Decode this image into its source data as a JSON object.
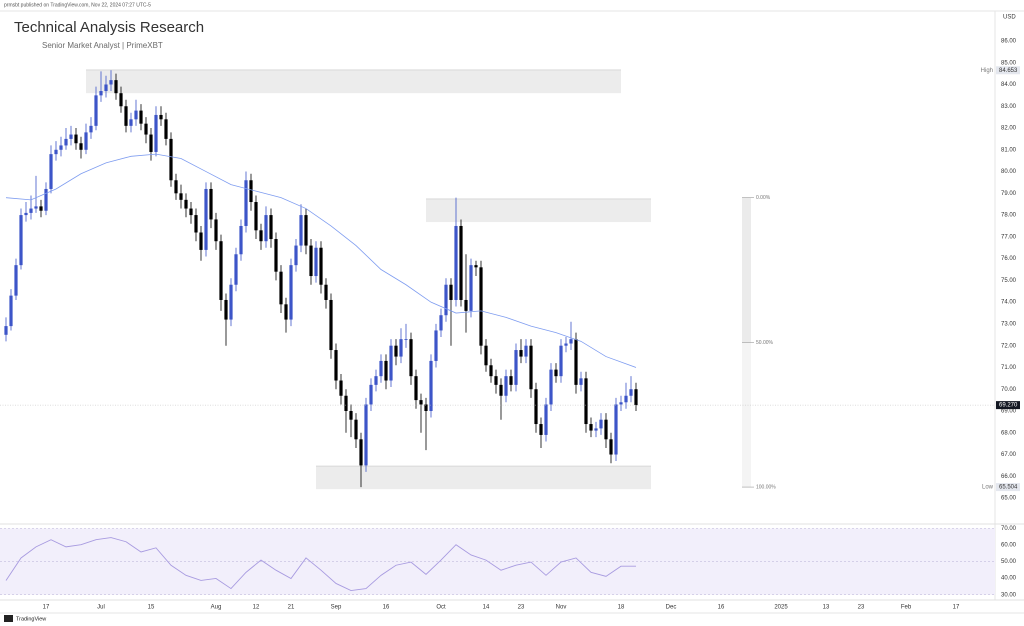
{
  "header": {
    "publisher": "prmsbt published on TradingView.com, Nov 22, 2024 07:27 UTC-5",
    "title": "Technical Analysis Research",
    "subtitle": "Senior Market Analyst | PrimeXBT"
  },
  "footer": {
    "brand": "TradingView"
  },
  "chart_data": [
    {
      "type": "candlestick",
      "y_unit": "USD",
      "up_color": "#3d55c8",
      "down_color": "#000000",
      "grid": false,
      "xlim": [
        -1.2,
        197.8
      ],
      "ylim": [
        63.9,
        87.33
      ],
      "xticks": [
        {
          "value": 8,
          "label": "17"
        },
        {
          "value": 19,
          "label": "Jul"
        },
        {
          "value": 29,
          "label": "15"
        },
        {
          "value": 42,
          "label": "Aug"
        },
        {
          "value": 50,
          "label": "12"
        },
        {
          "value": 57,
          "label": "21"
        },
        {
          "value": 66,
          "label": "Sep"
        },
        {
          "value": 76,
          "label": "16"
        },
        {
          "value": 87,
          "label": "Oct"
        },
        {
          "value": 96,
          "label": "14"
        },
        {
          "value": 103,
          "label": "23"
        },
        {
          "value": 111,
          "label": "Nov"
        },
        {
          "value": 123,
          "label": "18"
        },
        {
          "value": 133,
          "label": "Dec"
        },
        {
          "value": 143,
          "label": "16"
        },
        {
          "value": 155,
          "label": "2025"
        },
        {
          "value": 164,
          "label": "13"
        },
        {
          "value": 171,
          "label": "23"
        },
        {
          "value": 180,
          "label": "Feb"
        },
        {
          "value": 190,
          "label": "17"
        }
      ],
      "yticks": [
        {
          "value": 65,
          "label": "65.00"
        },
        {
          "value": 66,
          "label": "66.00"
        },
        {
          "value": 67,
          "label": "67.00"
        },
        {
          "value": 68,
          "label": "68.00"
        },
        {
          "value": 69,
          "label": "69.00"
        },
        {
          "value": 70,
          "label": "70.00"
        },
        {
          "value": 71,
          "label": "71.00"
        },
        {
          "value": 72,
          "label": "72.00"
        },
        {
          "value": 73,
          "label": "73.00"
        },
        {
          "value": 74,
          "label": "74.00"
        },
        {
          "value": 75,
          "label": "75.00"
        },
        {
          "value": 76,
          "label": "76.00"
        },
        {
          "value": 77,
          "label": "77.00"
        },
        {
          "value": 78,
          "label": "78.00"
        },
        {
          "value": 79,
          "label": "79.00"
        },
        {
          "value": 80,
          "label": "80.00"
        },
        {
          "value": 81,
          "label": "81.00"
        },
        {
          "value": 82,
          "label": "82.00"
        },
        {
          "value": 83,
          "label": "83.00"
        },
        {
          "value": 84,
          "label": "84.00"
        },
        {
          "value": 85,
          "label": "85.00"
        },
        {
          "value": 86,
          "label": "86.00"
        }
      ],
      "ohlc": [
        [
          72.5,
          73.3,
          72.2,
          72.9
        ],
        [
          72.9,
          74.6,
          72.7,
          74.3
        ],
        [
          74.3,
          76.0,
          74.1,
          75.7
        ],
        [
          75.7,
          78.3,
          75.5,
          78.0
        ],
        [
          78.0,
          78.6,
          77.7,
          78.1
        ],
        [
          78.1,
          78.9,
          77.8,
          78.3
        ],
        [
          78.3,
          79.8,
          78.1,
          78.4
        ],
        [
          78.4,
          78.7,
          77.9,
          78.2
        ],
        [
          78.2,
          79.5,
          78.0,
          79.2
        ],
        [
          79.2,
          81.2,
          79.0,
          80.8
        ],
        [
          80.8,
          81.4,
          80.5,
          81.0
        ],
        [
          81.0,
          81.6,
          80.7,
          81.2
        ],
        [
          81.2,
          82.0,
          81.0,
          81.5
        ],
        [
          81.5,
          82.1,
          81.2,
          81.7
        ],
        [
          81.7,
          82.0,
          81.0,
          81.3
        ],
        [
          81.3,
          81.6,
          80.6,
          81.0
        ],
        [
          81.0,
          82.2,
          80.8,
          81.8
        ],
        [
          81.8,
          82.5,
          81.5,
          82.1
        ],
        [
          82.1,
          83.9,
          81.9,
          83.5
        ],
        [
          83.5,
          84.6,
          83.2,
          83.7
        ],
        [
          83.7,
          84.4,
          83.4,
          84.0
        ],
        [
          84.0,
          84.653,
          83.7,
          84.2
        ],
        [
          84.2,
          84.5,
          83.3,
          83.6
        ],
        [
          83.6,
          83.9,
          82.7,
          83.0
        ],
        [
          83.0,
          83.3,
          81.8,
          82.1
        ],
        [
          82.1,
          82.7,
          81.8,
          82.4
        ],
        [
          82.4,
          83.3,
          82.1,
          82.8
        ],
        [
          82.8,
          83.1,
          81.9,
          82.2
        ],
        [
          82.2,
          82.5,
          81.3,
          81.7
        ],
        [
          81.7,
          82.0,
          80.5,
          80.9
        ],
        [
          80.9,
          83.0,
          80.7,
          82.6
        ],
        [
          82.6,
          83.0,
          82.1,
          82.4
        ],
        [
          82.4,
          82.7,
          81.2,
          81.5
        ],
        [
          81.5,
          81.8,
          79.3,
          79.6
        ],
        [
          79.6,
          79.9,
          78.7,
          79.0
        ],
        [
          79.0,
          79.4,
          78.3,
          78.7
        ],
        [
          78.7,
          79.0,
          77.9,
          78.3
        ],
        [
          78.3,
          78.6,
          77.6,
          78.0
        ],
        [
          78.0,
          78.3,
          76.8,
          77.2
        ],
        [
          77.2,
          77.5,
          75.9,
          76.4
        ],
        [
          76.4,
          79.5,
          76.1,
          79.2
        ],
        [
          79.2,
          79.5,
          77.4,
          77.8
        ],
        [
          77.8,
          78.1,
          76.4,
          76.8
        ],
        [
          76.8,
          77.1,
          73.6,
          74.1
        ],
        [
          74.1,
          74.4,
          72.0,
          73.2
        ],
        [
          73.2,
          75.1,
          72.9,
          74.8
        ],
        [
          74.8,
          76.5,
          74.5,
          76.2
        ],
        [
          76.2,
          77.8,
          75.9,
          77.5
        ],
        [
          77.5,
          80.0,
          77.2,
          79.6
        ],
        [
          79.6,
          79.9,
          78.2,
          78.6
        ],
        [
          78.6,
          78.9,
          76.9,
          77.3
        ],
        [
          77.3,
          77.6,
          76.4,
          76.8
        ],
        [
          76.8,
          78.4,
          76.5,
          78.0
        ],
        [
          78.0,
          78.3,
          76.5,
          76.9
        ],
        [
          76.9,
          77.2,
          75.0,
          75.4
        ],
        [
          75.4,
          75.7,
          73.5,
          73.9
        ],
        [
          73.9,
          74.2,
          72.6,
          73.2
        ],
        [
          73.2,
          76.0,
          72.9,
          75.7
        ],
        [
          75.7,
          76.9,
          75.4,
          76.6
        ],
        [
          76.6,
          78.5,
          76.3,
          78.0
        ],
        [
          78.0,
          78.3,
          76.2,
          76.6
        ],
        [
          76.6,
          76.9,
          74.8,
          75.2
        ],
        [
          75.2,
          76.8,
          74.9,
          76.5
        ],
        [
          76.5,
          76.8,
          74.4,
          74.8
        ],
        [
          74.8,
          75.1,
          73.7,
          74.1
        ],
        [
          74.1,
          74.4,
          71.4,
          71.8
        ],
        [
          71.8,
          72.1,
          70.0,
          70.4
        ],
        [
          70.4,
          70.7,
          69.3,
          69.7
        ],
        [
          69.7,
          70.0,
          68.0,
          69.0
        ],
        [
          69.0,
          69.3,
          67.8,
          68.6
        ],
        [
          68.6,
          68.9,
          67.3,
          67.7
        ],
        [
          67.7,
          68.0,
          65.504,
          66.5
        ],
        [
          66.5,
          69.6,
          66.2,
          69.3
        ],
        [
          69.3,
          70.5,
          69.0,
          70.2
        ],
        [
          70.2,
          70.9,
          69.9,
          70.6
        ],
        [
          70.6,
          71.6,
          70.3,
          71.3
        ],
        [
          71.3,
          71.6,
          70.0,
          70.4
        ],
        [
          70.4,
          72.3,
          70.1,
          72.0
        ],
        [
          72.0,
          72.3,
          71.1,
          71.5
        ],
        [
          71.5,
          72.8,
          71.2,
          72.3
        ],
        [
          72.3,
          73.0,
          71.9,
          72.3
        ],
        [
          72.3,
          72.6,
          70.2,
          70.6
        ],
        [
          70.6,
          70.9,
          69.1,
          69.5
        ],
        [
          69.5,
          69.8,
          68.0,
          69.3
        ],
        [
          69.3,
          69.6,
          67.2,
          69.0
        ],
        [
          69.0,
          71.6,
          68.7,
          71.3
        ],
        [
          71.3,
          73.0,
          71.0,
          72.7
        ],
        [
          72.7,
          73.7,
          72.4,
          73.4
        ],
        [
          73.4,
          75.1,
          73.1,
          74.8
        ],
        [
          74.8,
          75.1,
          72.0,
          74.1
        ],
        [
          74.1,
          78.8,
          73.8,
          77.5
        ],
        [
          77.5,
          77.8,
          73.8,
          74.1
        ],
        [
          74.1,
          76.2,
          72.6,
          73.6
        ],
        [
          73.6,
          76.0,
          73.3,
          75.7
        ],
        [
          75.7,
          75.9,
          75.2,
          75.6
        ],
        [
          75.6,
          75.9,
          71.6,
          72.0
        ],
        [
          72.0,
          72.3,
          70.8,
          71.1
        ],
        [
          71.1,
          71.4,
          70.3,
          70.6
        ],
        [
          70.6,
          70.9,
          69.8,
          70.2
        ],
        [
          70.2,
          70.5,
          68.6,
          69.7
        ],
        [
          69.7,
          70.9,
          69.4,
          70.6
        ],
        [
          70.6,
          70.9,
          69.9,
          70.2
        ],
        [
          70.2,
          72.1,
          69.9,
          71.8
        ],
        [
          71.8,
          72.3,
          71.2,
          71.5
        ],
        [
          71.5,
          72.3,
          71.2,
          72.0
        ],
        [
          72.0,
          72.3,
          69.6,
          70.0
        ],
        [
          70.0,
          70.3,
          68.0,
          68.4
        ],
        [
          68.4,
          68.7,
          67.3,
          67.9
        ],
        [
          67.9,
          69.6,
          67.6,
          69.3
        ],
        [
          69.3,
          71.2,
          69.0,
          70.9
        ],
        [
          70.9,
          71.2,
          70.3,
          70.6
        ],
        [
          70.6,
          72.3,
          70.3,
          72.0
        ],
        [
          72.0,
          72.4,
          71.7,
          72.1
        ],
        [
          72.1,
          73.1,
          71.8,
          72.3
        ],
        [
          72.3,
          72.6,
          69.8,
          70.2
        ],
        [
          70.2,
          70.8,
          69.9,
          70.5
        ],
        [
          70.5,
          70.8,
          68.0,
          68.4
        ],
        [
          68.4,
          68.7,
          67.8,
          68.1
        ],
        [
          68.1,
          68.5,
          67.8,
          68.2
        ],
        [
          68.2,
          68.9,
          67.9,
          68.6
        ],
        [
          68.6,
          68.9,
          67.3,
          67.7
        ],
        [
          67.7,
          68.0,
          66.6,
          67.0
        ],
        [
          67.0,
          69.6,
          66.7,
          69.3
        ],
        [
          69.3,
          69.7,
          69.0,
          69.4
        ],
        [
          69.4,
          70.3,
          69.1,
          69.7
        ],
        [
          69.7,
          70.6,
          69.4,
          70.0
        ],
        [
          70.0,
          70.3,
          69.0,
          69.27
        ]
      ],
      "ma": {
        "color": "#7e9cf0",
        "x": [
          0,
          5,
          10,
          15,
          20,
          25,
          30,
          35,
          40,
          45,
          50,
          55,
          60,
          65,
          70,
          75,
          80,
          85,
          90,
          95,
          100,
          105,
          110,
          115,
          120,
          126
        ],
        "values": [
          78.8,
          78.7,
          79.2,
          79.9,
          80.4,
          80.7,
          80.8,
          80.6,
          80.0,
          79.4,
          79.1,
          78.8,
          78.3,
          77.5,
          76.6,
          75.5,
          74.8,
          74.0,
          73.5,
          73.6,
          73.3,
          72.9,
          72.6,
          72.2,
          71.5,
          71.0
        ]
      },
      "zones": [
        {
          "start": 16,
          "end": 123,
          "low": 83.6,
          "high": 84.67
        },
        {
          "start": 84,
          "end": 129,
          "low": 77.68,
          "high": 78.74
        },
        {
          "start": 62,
          "end": 129,
          "low": 65.41,
          "high": 66.47
        }
      ],
      "fib": {
        "x": 148,
        "levels": [
          {
            "value": 78.8,
            "label": "0.00%"
          },
          {
            "value": 72.15,
            "label": "50.00%"
          },
          {
            "value": 65.504,
            "label": "100.00%"
          }
        ]
      },
      "high": {
        "label": "High",
        "value": 84.653
      },
      "low": {
        "label": "Low",
        "value": 65.504
      },
      "last": {
        "value": 69.27,
        "label": "69.270"
      }
    },
    {
      "type": "line",
      "color": "#a89be0",
      "band_color": "#f2effb",
      "xlim": [
        -1.2,
        197.8
      ],
      "ylim": [
        26.8,
        71.5
      ],
      "band": [
        30,
        70
      ],
      "midline": 50,
      "yticks": [
        {
          "value": 30,
          "label": "30.00"
        },
        {
          "value": 40,
          "label": "40.00"
        },
        {
          "value": 50,
          "label": "50.00"
        },
        {
          "value": 60,
          "label": "60.00"
        },
        {
          "value": 70,
          "label": "70.00"
        }
      ],
      "x": [
        0,
        3,
        6,
        9,
        12,
        15,
        18,
        21,
        24,
        27,
        30,
        33,
        36,
        39,
        42,
        45,
        48,
        51,
        54,
        57,
        60,
        63,
        66,
        69,
        72,
        75,
        78,
        81,
        84,
        87,
        90,
        93,
        96,
        99,
        102,
        105,
        108,
        111,
        114,
        117,
        120,
        123,
        126
      ],
      "values": [
        38.6,
        52.2,
        58.9,
        63.2,
        58.9,
        60.2,
        63.2,
        64.5,
        62,
        55.8,
        58.3,
        47.8,
        41.7,
        38.6,
        39.8,
        33.7,
        43.5,
        50.9,
        44.8,
        39.8,
        52.2,
        44.8,
        36.8,
        32.5,
        33.7,
        41.7,
        47.8,
        49.7,
        42.3,
        50.9,
        60.2,
        54,
        50.9,
        44.8,
        47.8,
        49.7,
        41.7,
        49.7,
        52.2,
        43.5,
        41.1,
        47.2,
        47.2
      ]
    }
  ]
}
